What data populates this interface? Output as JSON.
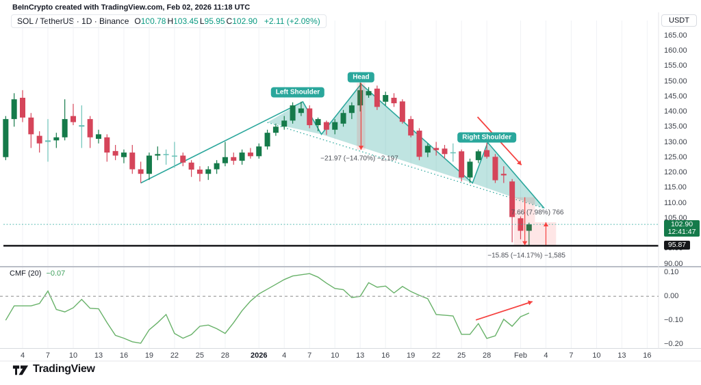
{
  "attribution": "BeInCrypto created with TradingView.com, Feb 02, 2026 11:18 UTC",
  "symbol_bar": {
    "title": "SOL / TetherUS · 1D · Binance",
    "ohlc": [
      {
        "label": "O",
        "value": "100.78"
      },
      {
        "label": "H",
        "value": "103.45"
      },
      {
        "label": "L",
        "value": "95.95"
      },
      {
        "label": "C",
        "value": "102.90"
      }
    ],
    "change": "+2.11 (+2.09%)"
  },
  "price_axis": {
    "currency_button": "USDT",
    "ticks": [
      "165.00",
      "160.00",
      "155.00",
      "150.00",
      "145.00",
      "140.00",
      "135.00",
      "130.00",
      "125.00",
      "120.00",
      "115.00",
      "110.00",
      "105.00",
      "100.00",
      "95.00",
      "90.00"
    ],
    "last_badge": {
      "price": "102.90",
      "countdown": "12:41:47"
    },
    "level_badge": "95.87"
  },
  "time_axis": {
    "ticks": [
      {
        "label": "4",
        "d": 0
      },
      {
        "label": "7",
        "d": 3
      },
      {
        "label": "10",
        "d": 6
      },
      {
        "label": "13",
        "d": 9
      },
      {
        "label": "16",
        "d": 12
      },
      {
        "label": "19",
        "d": 15
      },
      {
        "label": "22",
        "d": 18
      },
      {
        "label": "25",
        "d": 21
      },
      {
        "label": "28",
        "d": 24
      },
      {
        "label": "2026",
        "d": 28,
        "bold": true
      },
      {
        "label": "4",
        "d": 31
      },
      {
        "label": "7",
        "d": 34
      },
      {
        "label": "10",
        "d": 37
      },
      {
        "label": "13",
        "d": 40
      },
      {
        "label": "16",
        "d": 43
      },
      {
        "label": "19",
        "d": 46
      },
      {
        "label": "22",
        "d": 49
      },
      {
        "label": "25",
        "d": 52
      },
      {
        "label": "28",
        "d": 55
      },
      {
        "label": "Feb",
        "d": 59
      },
      {
        "label": "4",
        "d": 62
      },
      {
        "label": "7",
        "d": 65
      },
      {
        "label": "10",
        "d": 68
      },
      {
        "label": "13",
        "d": 71
      },
      {
        "label": "16",
        "d": 74
      }
    ]
  },
  "indicator": {
    "name": "CMF (20)",
    "value": "−0.07",
    "ticks": [
      {
        "label": "0.10",
        "v": 0.1
      },
      {
        "label": "0.00",
        "v": 0.0
      },
      {
        "label": "−0.10",
        "v": -0.1
      },
      {
        "label": "−0.20",
        "v": -0.2
      }
    ]
  },
  "footer": {
    "brand": "TradingView"
  },
  "colors": {
    "up": "#157a4a",
    "down": "#d5455a",
    "doji": "#6cc2b8",
    "pattern": "#2aa79c",
    "pattern_fill": "rgba(42,167,156,0.30)",
    "annotation_red": "#f5413f",
    "annotation_red_fill": "rgba(245,65,63,0.13)",
    "cmf_line": "#67b168",
    "legend_value": "#089981",
    "level_line": "#17181b",
    "grid": "#f0f2f5"
  },
  "annotations": {
    "pattern_labels": [
      {
        "text": "Left Shoulder",
        "d": 32.6,
        "p": 146.2
      },
      {
        "text": "Head",
        "d": 40.1,
        "p": 151.3
      },
      {
        "text": "Right Shoulder",
        "d": 55.0,
        "p": 131.4
      }
    ],
    "solid_line": [
      [
        14,
        116.5
      ],
      [
        33.2,
        143.2
      ],
      [
        35.4,
        132.5
      ],
      [
        40.1,
        149.0
      ],
      [
        53.3,
        116.5
      ],
      [
        55.1,
        129.8
      ],
      [
        61.8,
        108.2
      ]
    ],
    "dotted_line": [
      [
        29.0,
        136.4
      ],
      [
        61.8,
        108.2
      ]
    ],
    "fills": [
      [
        [
          29.0,
          136.4
        ],
        [
          33.2,
          143.2
        ],
        [
          35.4,
          132.5
        ]
      ],
      [
        [
          35.4,
          132.5
        ],
        [
          40.1,
          149.0
        ],
        [
          53.3,
          116.5
        ]
      ],
      [
        [
          53.3,
          116.5
        ],
        [
          55.1,
          129.8
        ],
        [
          61.8,
          108.2
        ]
      ]
    ],
    "measurements": [
      {
        "text": "−21.97 (−14.70%) −2,197",
        "band_d": [
          39.6,
          40.6
        ],
        "from": 149.4,
        "to": 127.4,
        "line_d": 40.1,
        "dir": "down",
        "label_d": 39.9,
        "label_p": 124.6
      },
      {
        "text": "−15.85 (−14.17%) −1,585",
        "band_d": [
          58.2,
          60.7
        ],
        "from": 111.8,
        "to": 96.0,
        "line_d": 59.5,
        "dir": "down",
        "label_d": 59.7,
        "label_p": 92.6
      },
      {
        "text": "7.66 (7.98%) 766",
        "band_d": [
          60.7,
          63.2
        ],
        "from": 96.0,
        "to": 103.6,
        "line_d": 62.0,
        "dir": "up",
        "label_d": 61.0,
        "label_p": 106.8
      }
    ],
    "trend_arrow": {
      "d1": 53.9,
      "p1": 138.2,
      "d2": 59.1,
      "p2": 122.4
    },
    "cmf_arrow": {
      "d1": 53.7,
      "v1": -0.099,
      "d2": 60.4,
      "v2": -0.022
    },
    "price_line": 102.9,
    "level_line": 95.87
  },
  "chart_data": {
    "type": "candlestick",
    "symbol": "SOL/USDT",
    "interval": "1D",
    "exchange": "Binance",
    "ylabel": "Price (USDT)",
    "ylim": [
      88,
      168
    ],
    "x_unit": "days since Dec 4, 2025",
    "candles_format": [
      "day_offset",
      "open",
      "high",
      "low",
      "close"
    ],
    "candles": [
      [
        -2,
        125.0,
        138.5,
        124.0,
        137.5
      ],
      [
        -1,
        137.5,
        146.0,
        135.0,
        144.0
      ],
      [
        0,
        144.5,
        147.0,
        136.5,
        138.0
      ],
      [
        1,
        138.0,
        139.5,
        128.0,
        132.5
      ],
      [
        2,
        132.0,
        133.5,
        126.5,
        129.5
      ],
      [
        3,
        130.0,
        137.5,
        123.5,
        130.5
      ],
      [
        4,
        130.5,
        133.0,
        128.0,
        131.5
      ],
      [
        5,
        131.5,
        144.0,
        130.5,
        137.5
      ],
      [
        6,
        138.5,
        142.5,
        135.5,
        136.5
      ],
      [
        7,
        135.5,
        142.0,
        128.0,
        135.0
      ],
      [
        8,
        137.5,
        138.5,
        128.0,
        131.5
      ],
      [
        9,
        131.0,
        134.0,
        129.5,
        132.5
      ],
      [
        10,
        131.5,
        132.5,
        123.5,
        126.5
      ],
      [
        11,
        127.0,
        129.0,
        124.0,
        125.5
      ],
      [
        12,
        125.0,
        127.5,
        123.0,
        126.5
      ],
      [
        13,
        126.5,
        129.0,
        119.5,
        121.0
      ],
      [
        14,
        121.0,
        123.5,
        116.5,
        119.5
      ],
      [
        15,
        119.5,
        126.5,
        117.5,
        125.5
      ],
      [
        16,
        125.5,
        128.5,
        124.0,
        126.0
      ],
      [
        17,
        126.0,
        127.5,
        122.5,
        125.8
      ],
      [
        18,
        125.5,
        130.0,
        121.5,
        125.5
      ],
      [
        19,
        125.5,
        126.5,
        122.0,
        123.2
      ],
      [
        20,
        123.2,
        124.0,
        118.5,
        120.9
      ],
      [
        21,
        120.9,
        122.0,
        117.0,
        119.5
      ],
      [
        22,
        119.5,
        122.0,
        117.5,
        121.0
      ],
      [
        23,
        121.0,
        124.0,
        119.5,
        123.0
      ],
      [
        24,
        123.0,
        130.0,
        122.0,
        125.0
      ],
      [
        25,
        125.0,
        126.5,
        122.5,
        123.8
      ],
      [
        26,
        123.8,
        127.5,
        122.5,
        126.5
      ],
      [
        27,
        126.5,
        128.0,
        124.5,
        125.3
      ],
      [
        28,
        125.3,
        129.5,
        124.5,
        128.5
      ],
      [
        29,
        128.5,
        134.0,
        127.5,
        133.0
      ],
      [
        30,
        133.0,
        136.0,
        132.0,
        135.0
      ],
      [
        31,
        135.0,
        138.5,
        134.0,
        137.0
      ],
      [
        32,
        137.0,
        143.0,
        136.0,
        142.0
      ],
      [
        33,
        139.5,
        143.2,
        138.5,
        141.0
      ],
      [
        34,
        141.0,
        142.0,
        134.5,
        135.5
      ],
      [
        35,
        135.5,
        138.0,
        133.5,
        137.5
      ],
      [
        36,
        136.5,
        137.0,
        132.3,
        134.0
      ],
      [
        37,
        134.0,
        137.5,
        132.5,
        136.5
      ],
      [
        38,
        136.0,
        140.5,
        135.0,
        139.5
      ],
      [
        39,
        139.5,
        143.0,
        137.5,
        142.0
      ],
      [
        40,
        142.0,
        149.5,
        140.0,
        147.0
      ],
      [
        41,
        145.3,
        148.0,
        144.5,
        146.7
      ],
      [
        42,
        147.5,
        148.5,
        140.5,
        141.5
      ],
      [
        43,
        143.2,
        146.5,
        142.0,
        145.4
      ],
      [
        44,
        144.5,
        146.0,
        141.5,
        142.7
      ],
      [
        45,
        143.3,
        144.0,
        136.0,
        136.6
      ],
      [
        46,
        137.5,
        138.5,
        131.5,
        132.1
      ],
      [
        47,
        133.7,
        134.5,
        124.0,
        125.1
      ],
      [
        48,
        126.5,
        129.5,
        125.0,
        128.7
      ],
      [
        49,
        128.0,
        130.0,
        125.5,
        127.3
      ],
      [
        50,
        127.8,
        129.0,
        124.5,
        126.0
      ],
      [
        51,
        126.3,
        129.5,
        123.5,
        126.6
      ],
      [
        52,
        126.9,
        127.5,
        117.0,
        118.3
      ],
      [
        53,
        118.3,
        124.5,
        116.5,
        123.5
      ],
      [
        54,
        124.0,
        127.5,
        123.0,
        126.9
      ],
      [
        55,
        127.3,
        129.7,
        124.5,
        125.1
      ],
      [
        56,
        125.1,
        126.0,
        116.5,
        117.4
      ],
      [
        57,
        119.5,
        122.0,
        116.5,
        119.0
      ],
      [
        58,
        117.0,
        117.8,
        97.0,
        105.3
      ],
      [
        59,
        104.9,
        105.5,
        98.0,
        100.79
      ],
      [
        60,
        100.78,
        103.45,
        95.95,
        102.9
      ]
    ],
    "teal_days": [
      3,
      7,
      17,
      18,
      51
    ],
    "cmf_series": {
      "name": "CMF (20)",
      "type": "line",
      "last_value": -0.07,
      "points": [
        [
          -2,
          -0.1
        ],
        [
          -1,
          -0.04
        ],
        [
          0,
          -0.04
        ],
        [
          1,
          -0.04
        ],
        [
          2,
          -0.03
        ],
        [
          3,
          0.022
        ],
        [
          4,
          -0.055
        ],
        [
          5,
          -0.065
        ],
        [
          6,
          -0.048
        ],
        [
          7,
          -0.013
        ],
        [
          8,
          -0.05
        ],
        [
          9,
          -0.052
        ],
        [
          10,
          -0.11
        ],
        [
          11,
          -0.163
        ],
        [
          12,
          -0.175
        ],
        [
          13,
          -0.19
        ],
        [
          14,
          -0.196
        ],
        [
          15,
          -0.14
        ],
        [
          16,
          -0.11
        ],
        [
          17,
          -0.076
        ],
        [
          18,
          -0.155
        ],
        [
          19,
          -0.175
        ],
        [
          20,
          -0.16
        ],
        [
          21,
          -0.125
        ],
        [
          22,
          -0.12
        ],
        [
          23,
          -0.135
        ],
        [
          24,
          -0.155
        ],
        [
          25,
          -0.11
        ],
        [
          26,
          -0.06
        ],
        [
          27,
          -0.02
        ],
        [
          28,
          0.01
        ],
        [
          29,
          0.03
        ],
        [
          30,
          0.05
        ],
        [
          31,
          0.07
        ],
        [
          32,
          0.085
        ],
        [
          33,
          0.09
        ],
        [
          34,
          0.095
        ],
        [
          35,
          0.08
        ],
        [
          36,
          0.055
        ],
        [
          37,
          0.033
        ],
        [
          38,
          0.028
        ],
        [
          39,
          -0.005
        ],
        [
          40,
          0.0
        ],
        [
          41,
          0.057
        ],
        [
          42,
          0.038
        ],
        [
          43,
          0.043
        ],
        [
          44,
          0.014
        ],
        [
          45,
          0.041
        ],
        [
          46,
          0.02
        ],
        [
          47,
          0.004
        ],
        [
          48,
          -0.01
        ],
        [
          49,
          -0.076
        ],
        [
          50,
          -0.079
        ],
        [
          51,
          -0.082
        ],
        [
          52,
          -0.159
        ],
        [
          53,
          -0.159
        ],
        [
          54,
          -0.114
        ],
        [
          55,
          -0.176
        ],
        [
          56,
          -0.165
        ],
        [
          57,
          -0.096
        ],
        [
          58,
          -0.125
        ],
        [
          59,
          -0.085
        ],
        [
          60,
          -0.07
        ]
      ]
    }
  }
}
